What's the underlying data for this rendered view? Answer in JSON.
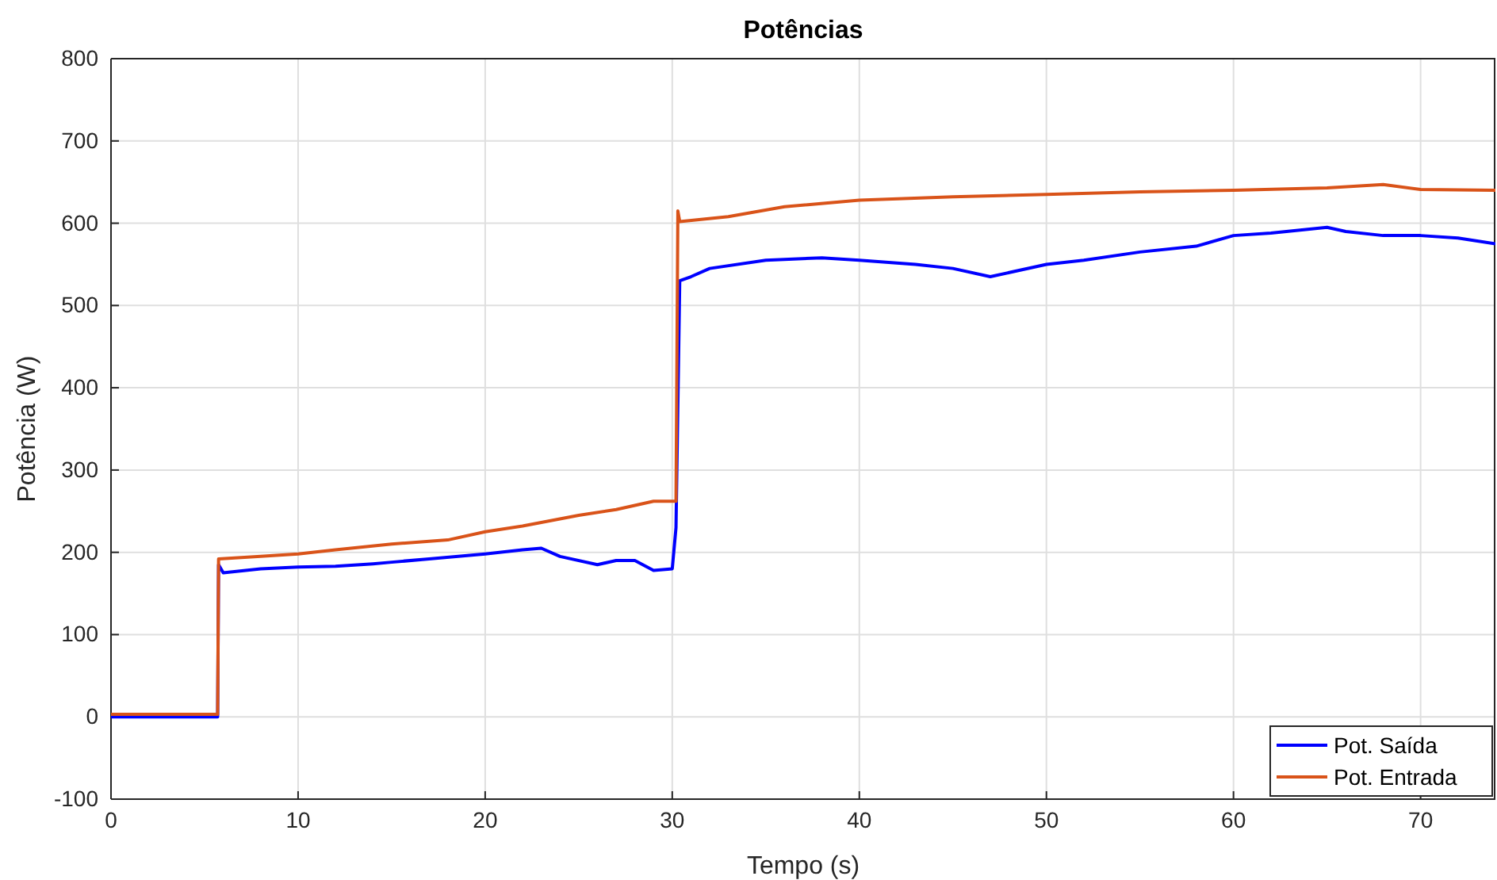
{
  "chart_data": {
    "type": "line",
    "title": "Potências",
    "xlabel": "Tempo (s)",
    "ylabel": "Potência (W)",
    "xlim": [
      0,
      74
    ],
    "xticks": [
      0,
      10,
      20,
      30,
      40,
      50,
      60,
      70
    ],
    "ylim": [
      -100,
      800
    ],
    "yticks": [
      -100,
      0,
      100,
      200,
      300,
      400,
      500,
      600,
      700,
      800
    ],
    "grid": true,
    "legend": "bottom right",
    "line_style": "solid",
    "marker": "none",
    "series": [
      {
        "name": "Pot. Saída",
        "color": "#0000ff",
        "x": [
          0,
          5.7,
          5.75,
          6,
          8,
          10,
          12,
          14,
          15,
          17,
          20,
          22,
          23,
          24,
          26,
          27,
          28,
          29,
          30,
          30.2,
          30.4,
          31,
          32,
          35,
          38,
          40,
          43,
          45,
          47,
          50,
          52,
          55,
          58,
          60,
          62,
          65,
          66,
          68,
          70,
          72,
          74
        ],
        "values": [
          0,
          0,
          185,
          175,
          180,
          182,
          183,
          186,
          188,
          192,
          198,
          203,
          205,
          195,
          185,
          190,
          190,
          178,
          180,
          230,
          530,
          535,
          545,
          555,
          558,
          555,
          550,
          545,
          535,
          550,
          555,
          565,
          572,
          585,
          588,
          595,
          590,
          585,
          585,
          582,
          575
        ]
      },
      {
        "name": "Pot. Entrada",
        "color": "#d95319",
        "x": [
          0,
          5.7,
          5.75,
          8,
          10,
          12,
          15,
          18,
          20,
          22,
          25,
          27,
          29,
          30.2,
          30.3,
          30.4,
          33,
          36,
          40,
          45,
          50,
          55,
          60,
          65,
          68,
          70,
          74
        ],
        "values": [
          3,
          3,
          192,
          195,
          198,
          203,
          210,
          215,
          225,
          232,
          245,
          252,
          262,
          262,
          615,
          602,
          608,
          620,
          628,
          632,
          635,
          638,
          640,
          643,
          647,
          641,
          640
        ]
      }
    ]
  }
}
